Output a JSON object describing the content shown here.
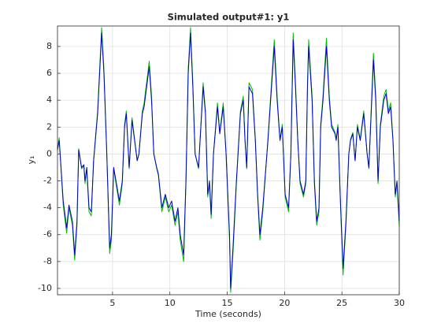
{
  "chart_data": {
    "type": "line",
    "title": "Simulated output#1: y1",
    "x_label": "Time (seconds)",
    "y_label": "y₁",
    "xlim": [
      0.2,
      30
    ],
    "ylim": [
      -10.47,
      9.52
    ],
    "xticks": [
      5,
      10,
      15,
      20,
      25,
      30
    ],
    "yticks": [
      -10,
      -8,
      -6,
      -4,
      -2,
      0,
      2,
      4,
      6,
      8
    ],
    "grid": true,
    "x": [
      0.2,
      0.35,
      0.7,
      1.0,
      1.2,
      1.5,
      1.7,
      1.9,
      2.05,
      2.3,
      2.5,
      2.6,
      2.75,
      2.95,
      3.15,
      3.35,
      3.5,
      3.7,
      4.05,
      4.25,
      4.5,
      4.75,
      4.9,
      5.1,
      5.3,
      5.6,
      5.85,
      6.05,
      6.2,
      6.45,
      6.7,
      7.15,
      7.3,
      7.6,
      7.75,
      8.2,
      8.4,
      8.6,
      8.85,
      9.0,
      9.3,
      9.6,
      9.9,
      10.15,
      10.45,
      10.7,
      10.9,
      11.2,
      11.4,
      11.6,
      11.8,
      12.0,
      12.2,
      12.5,
      12.9,
      13.1,
      13.3,
      13.45,
      13.6,
      13.8,
      14.15,
      14.35,
      14.65,
      14.9,
      15.2,
      15.3,
      15.5,
      15.8,
      16.15,
      16.4,
      16.55,
      16.7,
      16.9,
      17.2,
      17.45,
      17.65,
      17.85,
      18.1,
      18.55,
      19.1,
      19.35,
      19.6,
      19.8,
      20.05,
      20.35,
      20.55,
      20.75,
      20.95,
      21.15,
      21.35,
      21.65,
      21.85,
      22.0,
      22.1,
      22.4,
      22.6,
      22.8,
      23.0,
      23.15,
      23.35,
      23.65,
      23.9,
      24.1,
      24.4,
      24.5,
      24.65,
      24.85,
      25.1,
      25.35,
      25.6,
      25.75,
      25.95,
      26.15,
      26.35,
      26.6,
      26.9,
      27.2,
      27.35,
      27.5,
      27.75,
      27.95,
      28.15,
      28.35,
      28.65,
      28.85,
      29.05,
      29.25,
      29.45,
      29.65,
      29.8,
      30
    ],
    "series": [
      {
        "color": "#00bb00",
        "values": [
          0.4,
          1.2,
          -3.8,
          -5.9,
          -4.0,
          -5.3,
          -7.9,
          -5.3,
          0.4,
          -1.1,
          -0.9,
          -2.2,
          -1.1,
          -4.3,
          -4.6,
          -0.5,
          1.1,
          3.2,
          9.4,
          6.3,
          0,
          -7.4,
          -6.4,
          -1.1,
          -2.2,
          -3.8,
          -2.2,
          2.2,
          3.2,
          -1.1,
          2.7,
          -0.5,
          0,
          3.2,
          3.8,
          6.9,
          4.3,
          0,
          -1.1,
          -1.6,
          -4.3,
          -3.2,
          -4.3,
          -3.8,
          -5.3,
          -4.3,
          -6.4,
          -8.0,
          -2.2,
          6.4,
          9.4,
          5.3,
          0,
          -1.1,
          5.3,
          3.2,
          -3.2,
          -2.2,
          -4.8,
          0,
          3.8,
          1.6,
          3.8,
          0,
          -6.4,
          -10.3,
          -7.4,
          -2.2,
          3.2,
          4.3,
          1.1,
          -1.1,
          5.3,
          4.8,
          1.1,
          -3.2,
          -6.4,
          -4.3,
          1.1,
          8.5,
          4.3,
          1.1,
          2.2,
          -3.2,
          -4.3,
          0,
          9.0,
          5.3,
          1.1,
          -2.2,
          -3.2,
          -2.2,
          5.3,
          8.5,
          4.3,
          -2.2,
          -5.3,
          -4.3,
          2.2,
          4.3,
          8.6,
          4.3,
          2.2,
          1.6,
          1.1,
          2.2,
          -3.2,
          -9.0,
          -5.3,
          0,
          1.1,
          1.6,
          -0.5,
          2.2,
          1.1,
          3.2,
          0,
          -1.1,
          2.2,
          7.5,
          4.3,
          -2.2,
          2.2,
          4.3,
          4.8,
          3.2,
          3.8,
          1.1,
          -3.2,
          -2.2,
          -5.4
        ]
      },
      {
        "color": "#0000cc",
        "values": [
          0.3,
          1,
          -3.5,
          -5.5,
          -3.8,
          -5,
          -7.5,
          -5,
          0.3,
          -1,
          -0.8,
          -2,
          -1,
          -4,
          -4.3,
          -0.5,
          1,
          3,
          9,
          6,
          0,
          -7,
          -6,
          -1,
          -2,
          -3.5,
          -2,
          2,
          3,
          -1,
          2.5,
          -0.5,
          0,
          3,
          3.5,
          6.5,
          4,
          0,
          -1,
          -1.5,
          -4,
          -3,
          -4,
          -3.5,
          -5,
          -4,
          -6,
          -7.5,
          -2,
          6,
          9,
          5,
          0,
          -1,
          5,
          3,
          -3,
          -2,
          -4.5,
          0,
          3.5,
          1.5,
          3.5,
          0,
          -6,
          -10,
          -7,
          -2,
          3,
          4,
          1,
          -1,
          5,
          4.5,
          1,
          -3,
          -6,
          -4,
          1,
          8,
          4,
          1,
          2,
          -3,
          -4,
          0,
          8.5,
          5,
          1,
          -2,
          -3,
          -2,
          5,
          8,
          4,
          -2,
          -5,
          -4,
          2,
          4,
          8,
          4,
          2,
          1.5,
          1,
          2,
          -3,
          -8.5,
          -5,
          0,
          1,
          1.5,
          -0.5,
          2,
          1,
          3,
          0,
          -1,
          2,
          7,
          4,
          -2,
          2,
          4,
          4.5,
          3,
          3.5,
          1,
          -3,
          -2,
          -5
        ]
      }
    ]
  }
}
